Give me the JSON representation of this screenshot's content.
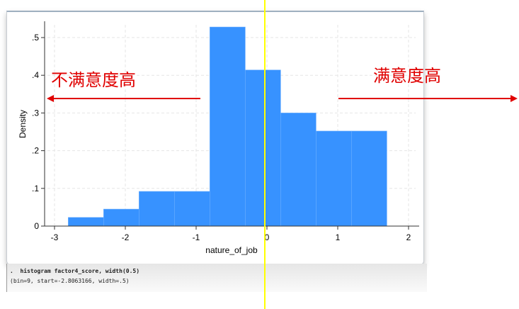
{
  "chart_data": {
    "type": "bar",
    "histogram": true,
    "bin_start": -2.8063166,
    "bin_width": 0.5,
    "values": [
      0.023,
      0.045,
      0.092,
      0.092,
      0.528,
      0.414,
      0.3,
      0.252,
      0.252
    ],
    "xlabel": "nature_of_job",
    "ylabel": "Density",
    "xlim": [
      -3.1,
      2.1
    ],
    "ylim": [
      0,
      0.54
    ],
    "xticks": [
      "-3",
      "-2",
      "-1",
      "0",
      "1",
      "2"
    ],
    "xtick_values": [
      -3,
      -2,
      -1,
      0,
      1,
      2
    ],
    "yticks": [
      "0",
      ".1",
      ".2",
      ".3",
      ".4",
      ".5"
    ],
    "ytick_values": [
      0,
      0.1,
      0.2,
      0.3,
      0.4,
      0.5
    ],
    "grid": true,
    "bar_color": "#3792ff",
    "annotations": {
      "left_text": "不满意度高",
      "right_text": "满意度高",
      "arrow_color": "#e00000",
      "marker_line_color": "#ffff00"
    }
  },
  "console": {
    "command": ".  histogram factor4_score, width(0.5)",
    "output": "(bin=9, start=-2.8063166, width=.5)"
  }
}
